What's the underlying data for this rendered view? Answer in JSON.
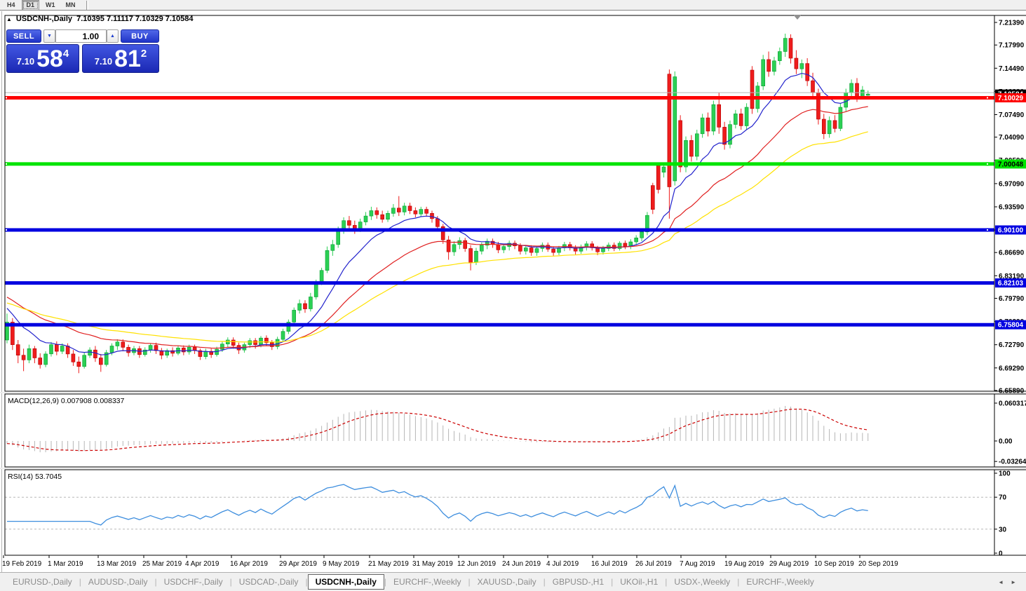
{
  "toolbar": {
    "timeframes": [
      {
        "label": "H4",
        "active": false
      },
      {
        "label": "D1",
        "active": true
      },
      {
        "label": "W1",
        "active": false
      },
      {
        "label": "MN",
        "active": false
      }
    ]
  },
  "chart_header": {
    "collapse_icon": "▲",
    "symbol": "USDCNH-,Daily",
    "ohlc": "7.10395 7.11117 7.10329 7.10584"
  },
  "one_click": {
    "sell_label": "SELL",
    "buy_label": "BUY",
    "volume": "1.00",
    "spin_down_icon": "▼",
    "spin_up_icon": "▲",
    "sell_price_prefix": "7.10",
    "sell_price_big": "58",
    "sell_price_sup": "4",
    "buy_price_prefix": "7.10",
    "buy_price_big": "81",
    "buy_price_sup": "2"
  },
  "chart_data": {
    "type": "candlestick",
    "symbol": "USDCNH-,Daily",
    "period": "Daily",
    "current": {
      "open": 7.10395,
      "high": 7.11117,
      "low": 7.10329,
      "close": 7.10584,
      "bid_label": "7.10584"
    },
    "ask_line_price": 7.10812,
    "price_axis_ticks": [
      [
        "7.21390",
        7.2139
      ],
      [
        "7.17990",
        7.1799
      ],
      [
        "7.14490",
        7.1449
      ],
      [
        "7.10990",
        7.1099
      ],
      [
        "7.07490",
        7.0749
      ],
      [
        "7.04090",
        7.0409
      ],
      [
        "7.00590",
        7.0059
      ],
      [
        "6.97090",
        6.9709
      ],
      [
        "6.93590",
        6.9359
      ],
      [
        "6.90090",
        6.9009
      ],
      [
        "6.86690",
        6.8669
      ],
      [
        "6.83190",
        6.8319
      ],
      [
        "6.79790",
        6.7979
      ],
      [
        "6.76290",
        6.7629
      ],
      [
        "6.72790",
        6.7279
      ],
      [
        "6.69290",
        6.6929
      ],
      [
        "6.65890",
        6.6589
      ]
    ],
    "hlines": [
      {
        "label": "7.10029",
        "price": 7.10029,
        "color": "#FE0000",
        "text_color": "#FFFFFF",
        "anchors": true
      },
      {
        "label": "7.00048",
        "price": 7.00048,
        "color": "#00E400",
        "text_color": "#000000",
        "anchors": true
      },
      {
        "label": "6.90100",
        "price": 6.901,
        "color": "#0000E0",
        "text_color": "#FFFFFF",
        "anchors": true
      },
      {
        "label": "6.82103",
        "price": 6.82103,
        "color": "#0000E0",
        "text_color": "#FFFFFF",
        "anchors": false
      },
      {
        "label": "6.75804",
        "price": 6.75804,
        "color": "#0000E0",
        "text_color": "#FFFFFF",
        "anchors": false
      }
    ],
    "date_ticks": [
      [
        5,
        "19 Feb 2019"
      ],
      [
        70,
        "1 Mar 2019"
      ],
      [
        140,
        "13 Mar 2019"
      ],
      [
        205,
        "25 Mar 2019"
      ],
      [
        266,
        "4 Apr 2019"
      ],
      [
        330,
        "16 Apr 2019"
      ],
      [
        400,
        "29 Apr 2019"
      ],
      [
        462,
        "9 May 2019"
      ],
      [
        527,
        "21 May 2019"
      ],
      [
        590,
        "31 May 2019"
      ],
      [
        654,
        "12 Jun 2019"
      ],
      [
        718,
        "24 Jun 2019"
      ],
      [
        781,
        "4 Jul 2019"
      ],
      [
        845,
        "16 Jul 2019"
      ],
      [
        908,
        "26 Jul 2019"
      ],
      [
        971,
        "7 Aug 2019"
      ],
      [
        1035,
        "19 Aug 2019"
      ],
      [
        1099,
        "29 Aug 2019"
      ],
      [
        1163,
        "10 Sep 2019"
      ],
      [
        1226,
        "20 Sep 2019"
      ]
    ],
    "ma_colors": [
      "#2222CC",
      "#E02020",
      "#FFE100"
    ],
    "candle_up_color": "#2BD054",
    "candle_down_color": "#EE1C1C",
    "macd": {
      "label": "MACD(12,26,9) 0.007908 0.008337",
      "value": 0.007908,
      "signal": 0.008337,
      "axis": [
        [
          "0.060317",
          0.060317
        ],
        [
          "0.00",
          0
        ],
        [
          "-0.032648",
          -0.032648
        ]
      ]
    },
    "rsi": {
      "label": "RSI(14) 53.7045",
      "value": 53.7045,
      "axis": [
        [
          "100",
          100
        ],
        [
          "70",
          70
        ],
        [
          "30",
          30
        ],
        [
          "0",
          0
        ]
      ],
      "levels": [
        70,
        30
      ]
    },
    "candles": [
      [
        6.735,
        6.775,
        6.73,
        6.762
      ],
      [
        6.762,
        6.768,
        6.72,
        6.728
      ],
      [
        6.728,
        6.735,
        6.7,
        6.712
      ],
      [
        6.712,
        6.722,
        6.688,
        6.705
      ],
      [
        6.705,
        6.728,
        6.7,
        6.722
      ],
      [
        6.722,
        6.726,
        6.7,
        6.708
      ],
      [
        6.708,
        6.715,
        6.692,
        6.698
      ],
      [
        6.698,
        6.718,
        6.694,
        6.714
      ],
      [
        6.714,
        6.732,
        6.71,
        6.728
      ],
      [
        6.728,
        6.733,
        6.712,
        6.718
      ],
      [
        6.718,
        6.73,
        6.714,
        6.726
      ],
      [
        6.726,
        6.73,
        6.708,
        6.714
      ],
      [
        6.714,
        6.72,
        6.696,
        6.702
      ],
      [
        6.702,
        6.71,
        6.685,
        6.695
      ],
      [
        6.695,
        6.716,
        6.692,
        6.712
      ],
      [
        6.712,
        6.724,
        6.708,
        6.72
      ],
      [
        6.72,
        6.726,
        6.702,
        6.708
      ],
      [
        6.708,
        6.714,
        6.687,
        6.698
      ],
      [
        6.698,
        6.72,
        6.695,
        6.716
      ],
      [
        6.716,
        6.73,
        6.712,
        6.726
      ],
      [
        6.726,
        6.736,
        6.72,
        6.732
      ],
      [
        6.732,
        6.736,
        6.718,
        6.724
      ],
      [
        6.724,
        6.728,
        6.71,
        6.716
      ],
      [
        6.716,
        6.726,
        6.712,
        6.722
      ],
      [
        6.722,
        6.726,
        6.708,
        6.713
      ],
      [
        6.713,
        6.724,
        6.71,
        6.72
      ],
      [
        6.72,
        6.73,
        6.716,
        6.727
      ],
      [
        6.727,
        6.731,
        6.714,
        6.719
      ],
      [
        6.719,
        6.723,
        6.706,
        6.712
      ],
      [
        6.712,
        6.722,
        6.708,
        6.719
      ],
      [
        6.719,
        6.724,
        6.71,
        6.715
      ],
      [
        6.715,
        6.727,
        6.712,
        6.723
      ],
      [
        6.723,
        6.727,
        6.712,
        6.717
      ],
      [
        6.717,
        6.728,
        6.713,
        6.724
      ],
      [
        6.724,
        6.728,
        6.714,
        6.719
      ],
      [
        6.719,
        6.722,
        6.705,
        6.71
      ],
      [
        6.71,
        6.722,
        6.706,
        6.718
      ],
      [
        6.718,
        6.722,
        6.708,
        6.713
      ],
      [
        6.713,
        6.725,
        6.71,
        6.721
      ],
      [
        6.721,
        6.733,
        6.717,
        6.729
      ],
      [
        6.729,
        6.739,
        6.724,
        6.735
      ],
      [
        6.735,
        6.739,
        6.722,
        6.727
      ],
      [
        6.727,
        6.731,
        6.714,
        6.72
      ],
      [
        6.72,
        6.731,
        6.716,
        6.728
      ],
      [
        6.728,
        6.738,
        6.723,
        6.734
      ],
      [
        6.734,
        6.738,
        6.722,
        6.728
      ],
      [
        6.728,
        6.741,
        6.724,
        6.738
      ],
      [
        6.738,
        6.742,
        6.726,
        6.731
      ],
      [
        6.731,
        6.735,
        6.72,
        6.725
      ],
      [
        6.725,
        6.74,
        6.721,
        6.736
      ],
      [
        6.736,
        6.752,
        6.732,
        6.748
      ],
      [
        6.748,
        6.766,
        6.744,
        6.762
      ],
      [
        6.762,
        6.784,
        6.758,
        6.78
      ],
      [
        6.78,
        6.796,
        6.775,
        6.79
      ],
      [
        6.79,
        6.795,
        6.776,
        6.782
      ],
      [
        6.782,
        6.806,
        6.778,
        6.8
      ],
      [
        6.8,
        6.826,
        6.796,
        6.822
      ],
      [
        6.822,
        6.844,
        6.818,
        6.84
      ],
      [
        6.84,
        6.876,
        6.836,
        6.87
      ],
      [
        6.87,
        6.886,
        6.862,
        6.879
      ],
      [
        6.879,
        6.906,
        6.874,
        6.9
      ],
      [
        6.9,
        6.92,
        6.895,
        6.915
      ],
      [
        6.915,
        6.922,
        6.9,
        6.908
      ],
      [
        6.908,
        6.915,
        6.895,
        6.902
      ],
      [
        6.902,
        6.918,
        6.898,
        6.913
      ],
      [
        6.913,
        6.928,
        6.908,
        6.922
      ],
      [
        6.922,
        6.936,
        6.916,
        6.93
      ],
      [
        6.93,
        6.935,
        6.918,
        6.924
      ],
      [
        6.924,
        6.93,
        6.912,
        6.917
      ],
      [
        6.917,
        6.93,
        6.913,
        6.926
      ],
      [
        6.926,
        6.94,
        6.921,
        6.934
      ],
      [
        6.934,
        6.952,
        6.922,
        6.928
      ],
      [
        6.928,
        6.942,
        6.923,
        6.937
      ],
      [
        6.937,
        6.942,
        6.925,
        6.93
      ],
      [
        6.93,
        6.935,
        6.92,
        6.925
      ],
      [
        6.925,
        6.936,
        6.921,
        6.932
      ],
      [
        6.932,
        6.936,
        6.921,
        6.926
      ],
      [
        6.926,
        6.93,
        6.912,
        6.918
      ],
      [
        6.918,
        6.922,
        6.9,
        6.906
      ],
      [
        6.906,
        6.91,
        6.88,
        6.886
      ],
      [
        6.886,
        6.892,
        6.856,
        6.868
      ],
      [
        6.868,
        6.884,
        6.862,
        6.879
      ],
      [
        6.879,
        6.89,
        6.872,
        6.885
      ],
      [
        6.885,
        6.889,
        6.868,
        6.873
      ],
      [
        6.873,
        6.878,
        6.84,
        6.852
      ],
      [
        6.852,
        6.874,
        6.848,
        6.869
      ],
      [
        6.869,
        6.882,
        6.864,
        6.878
      ],
      [
        6.878,
        6.888,
        6.872,
        6.884
      ],
      [
        6.884,
        6.888,
        6.874,
        6.879
      ],
      [
        6.879,
        6.883,
        6.866,
        6.871
      ],
      [
        6.871,
        6.88,
        6.866,
        6.876
      ],
      [
        6.876,
        6.885,
        6.87,
        6.881
      ],
      [
        6.881,
        6.885,
        6.872,
        6.877
      ],
      [
        6.877,
        6.881,
        6.864,
        6.869
      ],
      [
        6.869,
        6.878,
        6.864,
        6.874
      ],
      [
        6.874,
        6.878,
        6.862,
        6.867
      ],
      [
        6.867,
        6.877,
        6.862,
        6.873
      ],
      [
        6.873,
        6.882,
        6.868,
        6.878
      ],
      [
        6.878,
        6.882,
        6.868,
        6.872
      ],
      [
        6.872,
        6.876,
        6.862,
        6.867
      ],
      [
        6.867,
        6.877,
        6.863,
        6.874
      ],
      [
        6.874,
        6.883,
        6.869,
        6.879
      ],
      [
        6.879,
        6.883,
        6.87,
        6.874
      ],
      [
        6.874,
        6.878,
        6.864,
        6.869
      ],
      [
        6.869,
        6.879,
        6.865,
        6.875
      ],
      [
        6.875,
        6.884,
        6.87,
        6.88
      ],
      [
        6.88,
        6.884,
        6.87,
        6.874
      ],
      [
        6.874,
        6.877,
        6.863,
        6.868
      ],
      [
        6.868,
        6.877,
        6.864,
        6.873
      ],
      [
        6.873,
        6.882,
        6.869,
        6.878
      ],
      [
        6.878,
        6.882,
        6.869,
        6.873
      ],
      [
        6.873,
        6.884,
        6.87,
        6.881
      ],
      [
        6.881,
        6.885,
        6.872,
        6.876
      ],
      [
        6.876,
        6.887,
        6.872,
        6.883
      ],
      [
        6.883,
        6.893,
        6.878,
        6.889
      ],
      [
        6.889,
        6.902,
        6.884,
        6.898
      ],
      [
        6.898,
        6.928,
        6.893,
        6.923
      ],
      [
        6.968,
        6.972,
        6.925,
        6.932
      ],
      [
        6.998,
        7.002,
        6.956,
        6.962
      ],
      [
        6.988,
        7.0,
        6.98,
        6.996
      ],
      [
        7.136,
        7.143,
        6.918,
        6.966
      ],
      [
        6.975,
        7.14,
        6.968,
        7.132
      ],
      [
        7.066,
        7.074,
        6.988,
        6.996
      ],
      [
        6.996,
        7.042,
        6.988,
        7.036
      ],
      [
        7.036,
        7.044,
        7.004,
        7.012
      ],
      [
        7.012,
        7.052,
        7.006,
        7.046
      ],
      [
        7.046,
        7.076,
        7.04,
        7.07
      ],
      [
        7.07,
        7.078,
        7.042,
        7.05
      ],
      [
        7.05,
        7.096,
        7.044,
        7.09
      ],
      [
        7.09,
        7.108,
        7.046,
        7.056
      ],
      [
        7.056,
        7.064,
        7.022,
        7.03
      ],
      [
        7.03,
        7.066,
        7.024,
        7.06
      ],
      [
        7.06,
        7.082,
        7.054,
        7.076
      ],
      [
        7.076,
        7.084,
        7.052,
        7.058
      ],
      [
        7.058,
        7.092,
        7.052,
        7.086
      ],
      [
        7.142,
        7.148,
        7.076,
        7.084
      ],
      [
        7.084,
        7.124,
        7.078,
        7.118
      ],
      [
        7.118,
        7.165,
        7.112,
        7.158
      ],
      [
        7.158,
        7.17,
        7.132,
        7.14
      ],
      [
        7.14,
        7.162,
        7.134,
        7.156
      ],
      [
        7.156,
        7.176,
        7.15,
        7.17
      ],
      [
        7.17,
        7.197,
        7.162,
        7.19
      ],
      [
        7.19,
        7.196,
        7.152,
        7.16
      ],
      [
        7.16,
        7.172,
        7.136,
        7.144
      ],
      [
        7.144,
        7.158,
        7.13,
        7.152
      ],
      [
        7.152,
        7.16,
        7.118,
        7.126
      ],
      [
        7.126,
        7.138,
        7.1,
        7.108
      ],
      [
        7.108,
        7.114,
        7.06,
        7.068
      ],
      [
        7.068,
        7.076,
        7.038,
        7.046
      ],
      [
        7.046,
        7.072,
        7.04,
        7.066
      ],
      [
        7.066,
        7.074,
        7.048,
        7.054
      ],
      [
        7.054,
        7.092,
        7.05,
        7.086
      ],
      [
        7.086,
        7.114,
        7.08,
        7.108
      ],
      [
        7.108,
        7.128,
        7.102,
        7.122
      ],
      [
        7.122,
        7.13,
        7.094,
        7.102
      ],
      [
        7.102,
        7.118,
        7.098,
        7.112
      ],
      [
        7.10395,
        7.11117,
        7.10329,
        7.10584
      ]
    ]
  },
  "tab_bar": {
    "left_arrow": "◄",
    "right_arrow": "►",
    "tabs": [
      {
        "label": "EURUSD-,Daily",
        "active": false
      },
      {
        "label": "AUDUSD-,Daily",
        "active": false
      },
      {
        "label": "USDCHF-,Daily",
        "active": false
      },
      {
        "label": "USDCAD-,Daily",
        "active": false
      },
      {
        "label": "USDCNH-,Daily",
        "active": true
      },
      {
        "label": "EURCHF-,Weekly",
        "active": false
      },
      {
        "label": "XAUUSD-,Daily",
        "active": false
      },
      {
        "label": "GBPUSD-,H1",
        "active": false
      },
      {
        "label": "UKOil-,H1",
        "active": false
      },
      {
        "label": "USDX-,Weekly",
        "active": false
      },
      {
        "label": "EURCHF-,Weekly",
        "active": false
      }
    ]
  }
}
